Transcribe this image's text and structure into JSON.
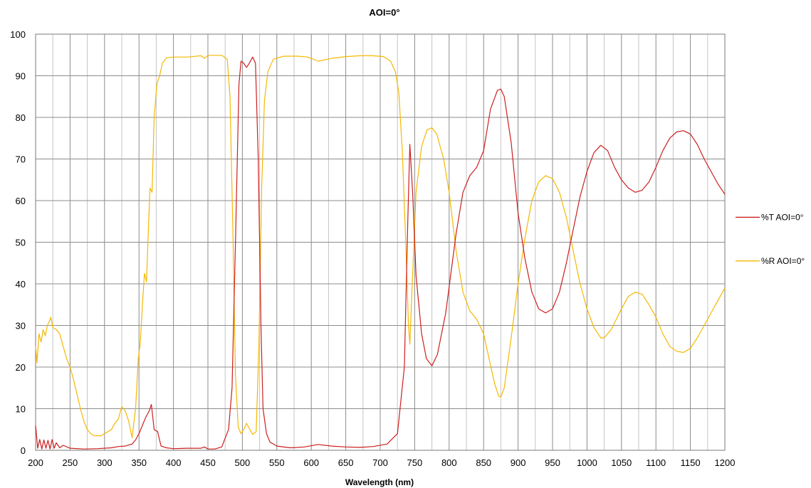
{
  "chart_data": {
    "type": "line",
    "title": "AOI=0°",
    "xlabel": "Wavelength (nm)",
    "ylabel": "",
    "xlim": [
      200,
      1200
    ],
    "ylim": [
      0,
      100
    ],
    "x_ticks": [
      200,
      250,
      300,
      350,
      400,
      450,
      500,
      550,
      600,
      650,
      700,
      750,
      800,
      850,
      900,
      950,
      1000,
      1050,
      1100,
      1150,
      1200
    ],
    "y_ticks": [
      0,
      10,
      20,
      30,
      40,
      50,
      60,
      70,
      80,
      90,
      100
    ],
    "minor_x_step": 25,
    "grid": true,
    "legend_position": "right",
    "series": [
      {
        "name": "%T AOI=0°",
        "color": "#cc1f1f",
        "points": [
          [
            200,
            6
          ],
          [
            203,
            0.5
          ],
          [
            206,
            2.6
          ],
          [
            209,
            0.3
          ],
          [
            212,
            2.5
          ],
          [
            215,
            0.5
          ],
          [
            218,
            2.4
          ],
          [
            221,
            0.3
          ],
          [
            224,
            2.6
          ],
          [
            227,
            0.5
          ],
          [
            230,
            1.8
          ],
          [
            235,
            0.6
          ],
          [
            240,
            1.2
          ],
          [
            250,
            0.5
          ],
          [
            270,
            0.3
          ],
          [
            290,
            0.4
          ],
          [
            310,
            0.6
          ],
          [
            320,
            0.9
          ],
          [
            330,
            1.0
          ],
          [
            340,
            1.5
          ],
          [
            345,
            2.5
          ],
          [
            350,
            4
          ],
          [
            355,
            6
          ],
          [
            360,
            8
          ],
          [
            365,
            9.5
          ],
          [
            368,
            11
          ],
          [
            372,
            5
          ],
          [
            377,
            4.5
          ],
          [
            382,
            1.0
          ],
          [
            390,
            0.6
          ],
          [
            400,
            0.4
          ],
          [
            420,
            0.5
          ],
          [
            440,
            0.5
          ],
          [
            445,
            0.8
          ],
          [
            450,
            0.3
          ],
          [
            460,
            0.3
          ],
          [
            470,
            0.8
          ],
          [
            480,
            5
          ],
          [
            485,
            15
          ],
          [
            490,
            50
          ],
          [
            495,
            88
          ],
          [
            498,
            93.5
          ],
          [
            502,
            93
          ],
          [
            506,
            92
          ],
          [
            510,
            93
          ],
          [
            515,
            94.5
          ],
          [
            519,
            93
          ],
          [
            523,
            70
          ],
          [
            527,
            30
          ],
          [
            530,
            10
          ],
          [
            535,
            4
          ],
          [
            540,
            2
          ],
          [
            550,
            1
          ],
          [
            570,
            0.6
          ],
          [
            590,
            0.8
          ],
          [
            610,
            1.4
          ],
          [
            630,
            1.0
          ],
          [
            650,
            0.8
          ],
          [
            670,
            0.7
          ],
          [
            690,
            0.9
          ],
          [
            710,
            1.5
          ],
          [
            725,
            4
          ],
          [
            735,
            20
          ],
          [
            740,
            55
          ],
          [
            743,
            73.5
          ],
          [
            747,
            62
          ],
          [
            752,
            42
          ],
          [
            760,
            28
          ],
          [
            767,
            22
          ],
          [
            775,
            20.3
          ],
          [
            783,
            23
          ],
          [
            795,
            33
          ],
          [
            810,
            52
          ],
          [
            820,
            62
          ],
          [
            830,
            66
          ],
          [
            840,
            68
          ],
          [
            850,
            72
          ],
          [
            860,
            82
          ],
          [
            870,
            86.5
          ],
          [
            875,
            86.8
          ],
          [
            880,
            85
          ],
          [
            890,
            74
          ],
          [
            900,
            57
          ],
          [
            910,
            46
          ],
          [
            920,
            38
          ],
          [
            930,
            34
          ],
          [
            940,
            33
          ],
          [
            950,
            34
          ],
          [
            960,
            38
          ],
          [
            970,
            45
          ],
          [
            980,
            53
          ],
          [
            990,
            61
          ],
          [
            1000,
            67
          ],
          [
            1010,
            71.5
          ],
          [
            1020,
            73.3
          ],
          [
            1030,
            72
          ],
          [
            1040,
            68
          ],
          [
            1050,
            65
          ],
          [
            1060,
            63
          ],
          [
            1070,
            62
          ],
          [
            1080,
            62.5
          ],
          [
            1090,
            64.5
          ],
          [
            1100,
            68
          ],
          [
            1110,
            72
          ],
          [
            1120,
            75
          ],
          [
            1130,
            76.5
          ],
          [
            1140,
            76.8
          ],
          [
            1150,
            76
          ],
          [
            1160,
            73.5
          ],
          [
            1170,
            70
          ],
          [
            1180,
            67
          ],
          [
            1190,
            64
          ],
          [
            1200,
            61.5
          ]
        ]
      },
      {
        "name": "%R AOI=0°",
        "color": "#f5b800",
        "points": [
          [
            200,
            25
          ],
          [
            202,
            21
          ],
          [
            205,
            28
          ],
          [
            208,
            26
          ],
          [
            211,
            29
          ],
          [
            214,
            27.5
          ],
          [
            217,
            30
          ],
          [
            220,
            31
          ],
          [
            222,
            32
          ],
          [
            225,
            29.5
          ],
          [
            230,
            29
          ],
          [
            235,
            28
          ],
          [
            240,
            25
          ],
          [
            245,
            22
          ],
          [
            250,
            20
          ],
          [
            255,
            17
          ],
          [
            260,
            13.5
          ],
          [
            265,
            10
          ],
          [
            270,
            7
          ],
          [
            275,
            5
          ],
          [
            280,
            4
          ],
          [
            285,
            3.5
          ],
          [
            290,
            3.5
          ],
          [
            295,
            3.5
          ],
          [
            300,
            4
          ],
          [
            305,
            4.5
          ],
          [
            310,
            5
          ],
          [
            315,
            6.5
          ],
          [
            320,
            7.5
          ],
          [
            325,
            10.5
          ],
          [
            330,
            9.5
          ],
          [
            335,
            7
          ],
          [
            340,
            3
          ],
          [
            345,
            10
          ],
          [
            349,
            22
          ],
          [
            352,
            26
          ],
          [
            355,
            35
          ],
          [
            358,
            42.5
          ],
          [
            361,
            40.5
          ],
          [
            364,
            55
          ],
          [
            366,
            63
          ],
          [
            369,
            62
          ],
          [
            372,
            80
          ],
          [
            376,
            88
          ],
          [
            380,
            90
          ],
          [
            384,
            93
          ],
          [
            390,
            94.3
          ],
          [
            400,
            94.5
          ],
          [
            420,
            94.5
          ],
          [
            440,
            94.8
          ],
          [
            445,
            94.2
          ],
          [
            450,
            94.9
          ],
          [
            470,
            94.9
          ],
          [
            478,
            94
          ],
          [
            482,
            85
          ],
          [
            486,
            55
          ],
          [
            490,
            18
          ],
          [
            494,
            5.5
          ],
          [
            498,
            4
          ],
          [
            502,
            5
          ],
          [
            506,
            6.5
          ],
          [
            511,
            5
          ],
          [
            515,
            3.8
          ],
          [
            520,
            4.5
          ],
          [
            524,
            25
          ],
          [
            528,
            63
          ],
          [
            532,
            84
          ],
          [
            537,
            91
          ],
          [
            545,
            94
          ],
          [
            560,
            94.7
          ],
          [
            580,
            94.7
          ],
          [
            595,
            94.5
          ],
          [
            610,
            93.5
          ],
          [
            630,
            94.2
          ],
          [
            650,
            94.6
          ],
          [
            670,
            94.8
          ],
          [
            690,
            94.8
          ],
          [
            705,
            94.6
          ],
          [
            715,
            93.5
          ],
          [
            722,
            91
          ],
          [
            727,
            86
          ],
          [
            732,
            72
          ],
          [
            737,
            50
          ],
          [
            741,
            30
          ],
          [
            743,
            25.5
          ],
          [
            746,
            38
          ],
          [
            752,
            62
          ],
          [
            760,
            73
          ],
          [
            768,
            77
          ],
          [
            775,
            77.5
          ],
          [
            782,
            76
          ],
          [
            792,
            70
          ],
          [
            800,
            62
          ],
          [
            810,
            48
          ],
          [
            820,
            38
          ],
          [
            830,
            33.5
          ],
          [
            840,
            31.5
          ],
          [
            850,
            28
          ],
          [
            858,
            22
          ],
          [
            866,
            16
          ],
          [
            872,
            13
          ],
          [
            875,
            12.8
          ],
          [
            880,
            15
          ],
          [
            890,
            27
          ],
          [
            900,
            40
          ],
          [
            910,
            51
          ],
          [
            920,
            60
          ],
          [
            930,
            64.5
          ],
          [
            940,
            66
          ],
          [
            950,
            65.3
          ],
          [
            960,
            62
          ],
          [
            970,
            56
          ],
          [
            980,
            48
          ],
          [
            990,
            40
          ],
          [
            1000,
            34
          ],
          [
            1010,
            29.5
          ],
          [
            1020,
            27
          ],
          [
            1025,
            27
          ],
          [
            1035,
            29
          ],
          [
            1050,
            34
          ],
          [
            1060,
            37
          ],
          [
            1070,
            38
          ],
          [
            1080,
            37.5
          ],
          [
            1090,
            35
          ],
          [
            1100,
            32
          ],
          [
            1110,
            28
          ],
          [
            1120,
            25
          ],
          [
            1130,
            23.8
          ],
          [
            1140,
            23.5
          ],
          [
            1150,
            24.5
          ],
          [
            1160,
            27
          ],
          [
            1170,
            30
          ],
          [
            1180,
            33
          ],
          [
            1190,
            36
          ],
          [
            1200,
            39
          ]
        ]
      }
    ]
  }
}
